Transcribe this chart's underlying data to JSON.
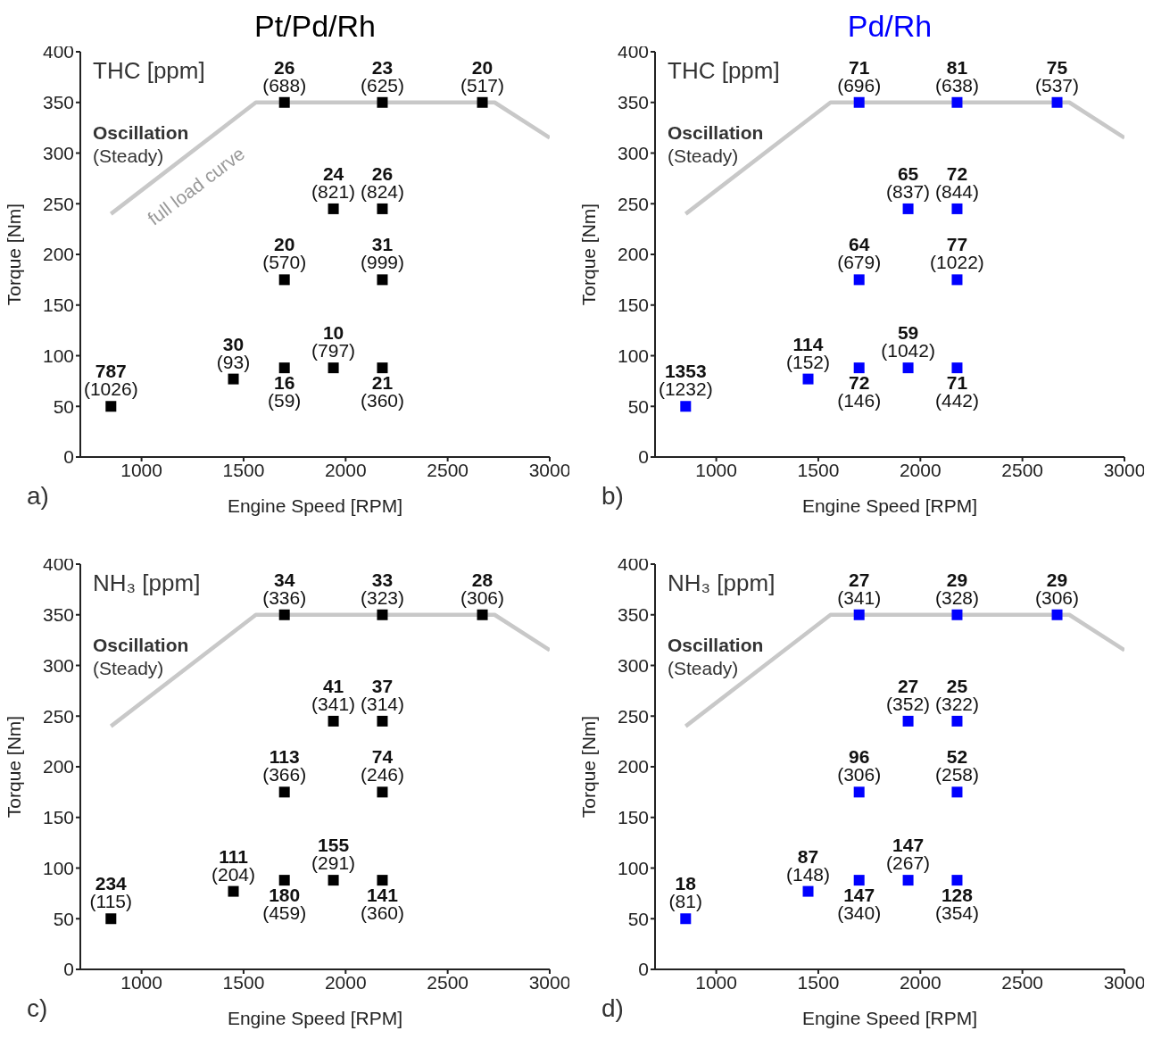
{
  "chart_data": [
    {
      "type": "scatter",
      "title": "Pt/Pd/Rh",
      "xlabel": "Engine Speed [RPM]",
      "ylabel": "Torque [Nm]",
      "xlim": [
        700,
        3000
      ],
      "ylim": [
        0,
        400
      ],
      "xticks": [
        1000,
        1500,
        2000,
        2500,
        3000
      ],
      "yticks": [
        0,
        50,
        100,
        150,
        200,
        250,
        300,
        350,
        400
      ],
      "grid": false,
      "legend": false,
      "marker": "square",
      "series": [
        {
          "type": "line",
          "color": "#c8c8c8",
          "marker": "none",
          "line_style": "solid",
          "x": [
            850,
            1560,
            2730,
            3000
          ],
          "values": [
            240,
            350,
            350,
            315
          ]
        },
        {
          "color": "#000000",
          "x": [
            850,
            1450,
            1700,
            1940,
            2180,
            1700,
            2180,
            1940,
            2180,
            1700,
            2180,
            2670
          ],
          "values": [
            50,
            77,
            88,
            88,
            88,
            175,
            175,
            245,
            245,
            350,
            350,
            350
          ],
          "value_labels": [
            "787\n(1026)",
            "30\n(93)",
            "16\n(59)",
            "10\n(797)",
            "21\n(360)",
            "20\n(570)",
            "31\n(999)",
            "24\n(821)",
            "26\n(824)",
            "26\n(688)",
            "23\n(625)",
            "20\n(517)"
          ]
        }
      ],
      "annotations": [
        "THC [ppm]",
        "Oscillation",
        "(Steady)",
        "a)",
        "full load curve"
      ]
    },
    {
      "type": "scatter",
      "title": "Pd/Rh",
      "xlabel": "Engine Speed [RPM]",
      "ylabel": "Torque [Nm]",
      "xlim": [
        700,
        3000
      ],
      "ylim": [
        0,
        400
      ],
      "xticks": [
        1000,
        1500,
        2000,
        2500,
        3000
      ],
      "yticks": [
        0,
        50,
        100,
        150,
        200,
        250,
        300,
        350,
        400
      ],
      "grid": false,
      "legend": false,
      "marker": "square",
      "series": [
        {
          "type": "line",
          "color": "#c8c8c8",
          "marker": "none",
          "line_style": "solid",
          "x": [
            850,
            1560,
            2730,
            3000
          ],
          "values": [
            240,
            350,
            350,
            315
          ]
        },
        {
          "color": "#0000ff",
          "x": [
            850,
            1450,
            1700,
            1940,
            2180,
            1700,
            2180,
            1940,
            2180,
            1700,
            2180,
            2670
          ],
          "values": [
            50,
            77,
            88,
            88,
            88,
            175,
            175,
            245,
            245,
            350,
            350,
            350
          ],
          "value_labels": [
            "1353\n(1232)",
            "114\n(152)",
            "72\n(146)",
            "59\n(1042)",
            "71\n(442)",
            "64\n(679)",
            "77\n(1022)",
            "65\n(837)",
            "72\n(844)",
            "71\n(696)",
            "81\n(638)",
            "75\n(537)"
          ]
        }
      ],
      "annotations": [
        "THC [ppm]",
        "Oscillation",
        "(Steady)",
        "b)"
      ]
    },
    {
      "type": "scatter",
      "xlabel": "Engine Speed [RPM]",
      "ylabel": "Torque [Nm]",
      "xlim": [
        700,
        3000
      ],
      "ylim": [
        0,
        400
      ],
      "xticks": [
        1000,
        1500,
        2000,
        2500,
        3000
      ],
      "yticks": [
        0,
        50,
        100,
        150,
        200,
        250,
        300,
        350,
        400
      ],
      "grid": false,
      "legend": false,
      "marker": "square",
      "series": [
        {
          "type": "line",
          "color": "#c8c8c8",
          "marker": "none",
          "line_style": "solid",
          "x": [
            850,
            1560,
            2730,
            3000
          ],
          "values": [
            240,
            350,
            350,
            315
          ]
        },
        {
          "color": "#000000",
          "x": [
            850,
            1450,
            1700,
            1940,
            2180,
            1700,
            2180,
            1940,
            2180,
            1700,
            2180,
            2670
          ],
          "values": [
            50,
            77,
            88,
            88,
            88,
            175,
            175,
            245,
            245,
            350,
            350,
            350
          ],
          "value_labels": [
            "234\n(115)",
            "111\n(204)",
            "180\n(459)",
            "155\n(291)",
            "141\n(360)",
            "113\n(366)",
            "74\n(246)",
            "41\n(341)",
            "37\n(314)",
            "34\n(336)",
            "33\n(323)",
            "28\n(306)"
          ]
        }
      ],
      "annotations": [
        "NH₃ [ppm]",
        "Oscillation",
        "(Steady)",
        "c)"
      ]
    },
    {
      "type": "scatter",
      "xlabel": "Engine Speed [RPM]",
      "ylabel": "Torque [Nm]",
      "xlim": [
        700,
        3000
      ],
      "ylim": [
        0,
        400
      ],
      "xticks": [
        1000,
        1500,
        2000,
        2500,
        3000
      ],
      "yticks": [
        0,
        50,
        100,
        150,
        200,
        250,
        300,
        350,
        400
      ],
      "grid": false,
      "legend": false,
      "marker": "square",
      "series": [
        {
          "type": "line",
          "color": "#c8c8c8",
          "marker": "none",
          "line_style": "solid",
          "x": [
            850,
            1560,
            2730,
            3000
          ],
          "values": [
            240,
            350,
            350,
            315
          ]
        },
        {
          "color": "#0000ff",
          "x": [
            850,
            1450,
            1700,
            1940,
            2180,
            1700,
            2180,
            1940,
            2180,
            1700,
            2180,
            2670
          ],
          "values": [
            50,
            77,
            88,
            88,
            88,
            175,
            175,
            245,
            245,
            350,
            350,
            350
          ],
          "value_labels": [
            "18\n(81)",
            "87\n(148)",
            "147\n(340)",
            "147\n(267)",
            "128\n(354)",
            "96\n(306)",
            "52\n(258)",
            "27\n(352)",
            "25\n(322)",
            "27\n(341)",
            "29\n(328)",
            "29\n(306)"
          ]
        }
      ],
      "annotations": [
        "NH₃ [ppm]",
        "Oscillation",
        "(Steady)",
        "d)"
      ]
    }
  ]
}
